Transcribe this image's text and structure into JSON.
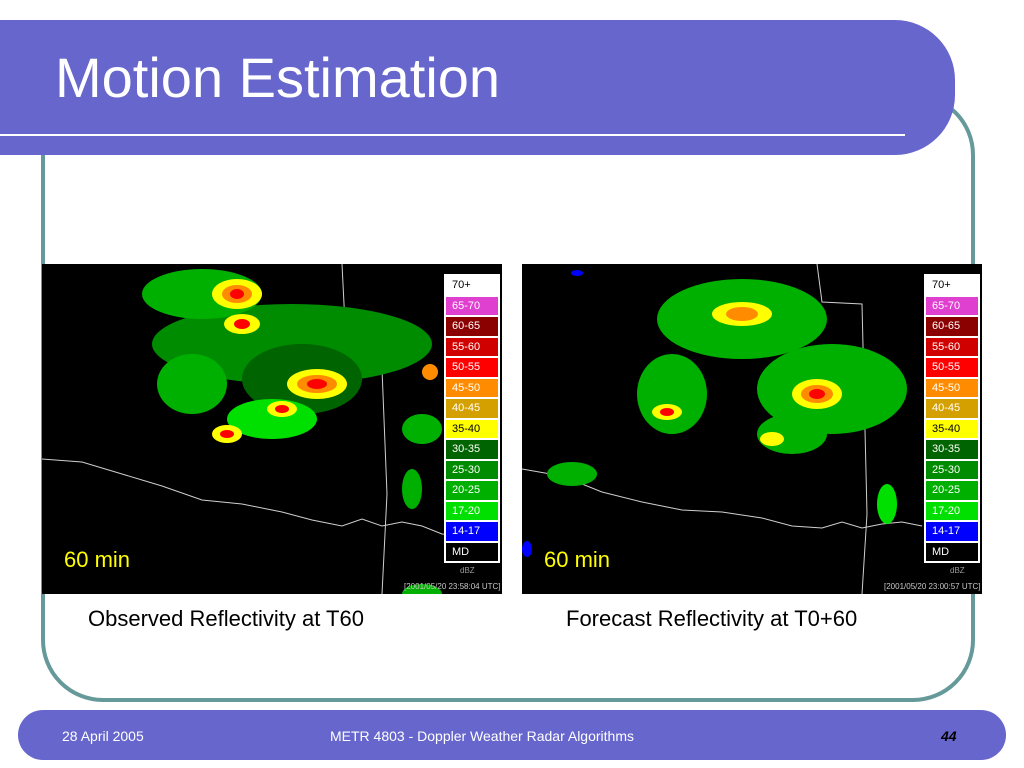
{
  "slide": {
    "title": "Motion Estimation",
    "page_number": "44",
    "colors": {
      "bar": "#6666cc",
      "frame": "#669999",
      "time_label": "#ffff00"
    }
  },
  "panels": [
    {
      "time_label": "60 min",
      "unit": "dBZ",
      "timestamp": "[2001/05/20 23:58:04 UTC]",
      "caption": "Observed Reflectivity at T60"
    },
    {
      "time_label": "60 min",
      "unit": "dBZ",
      "timestamp": "[2001/05/20 23:00:57 UTC]",
      "caption": "Forecast Reflectivity at T0+60"
    }
  ],
  "legend": [
    {
      "label": "70+",
      "color": "#ffffff",
      "text": "#000000"
    },
    {
      "label": "65-70",
      "color": "#e040d0",
      "text": "#ffffff"
    },
    {
      "label": "60-65",
      "color": "#8b0000",
      "text": "#ffffff"
    },
    {
      "label": "55-60",
      "color": "#d00000",
      "text": "#ffffff"
    },
    {
      "label": "50-55",
      "color": "#ff0000",
      "text": "#ffffff"
    },
    {
      "label": "45-50",
      "color": "#ff8c00",
      "text": "#ffffff"
    },
    {
      "label": "40-45",
      "color": "#d4a000",
      "text": "#ffffff"
    },
    {
      "label": "35-40",
      "color": "#ffff00",
      "text": "#000000"
    },
    {
      "label": "30-35",
      "color": "#006400",
      "text": "#ffffff"
    },
    {
      "label": "25-30",
      "color": "#008c00",
      "text": "#ffffff"
    },
    {
      "label": "20-25",
      "color": "#00b000",
      "text": "#ffffff"
    },
    {
      "label": "17-20",
      "color": "#00e000",
      "text": "#ffffff"
    },
    {
      "label": "14-17",
      "color": "#0000ff",
      "text": "#ffffff"
    },
    {
      "label": "MD",
      "color": "#000000",
      "text": "#ffffff"
    }
  ],
  "footer": {
    "date": "28 April 2005",
    "course": "METR 4803 - Doppler Weather Radar Algorithms"
  }
}
